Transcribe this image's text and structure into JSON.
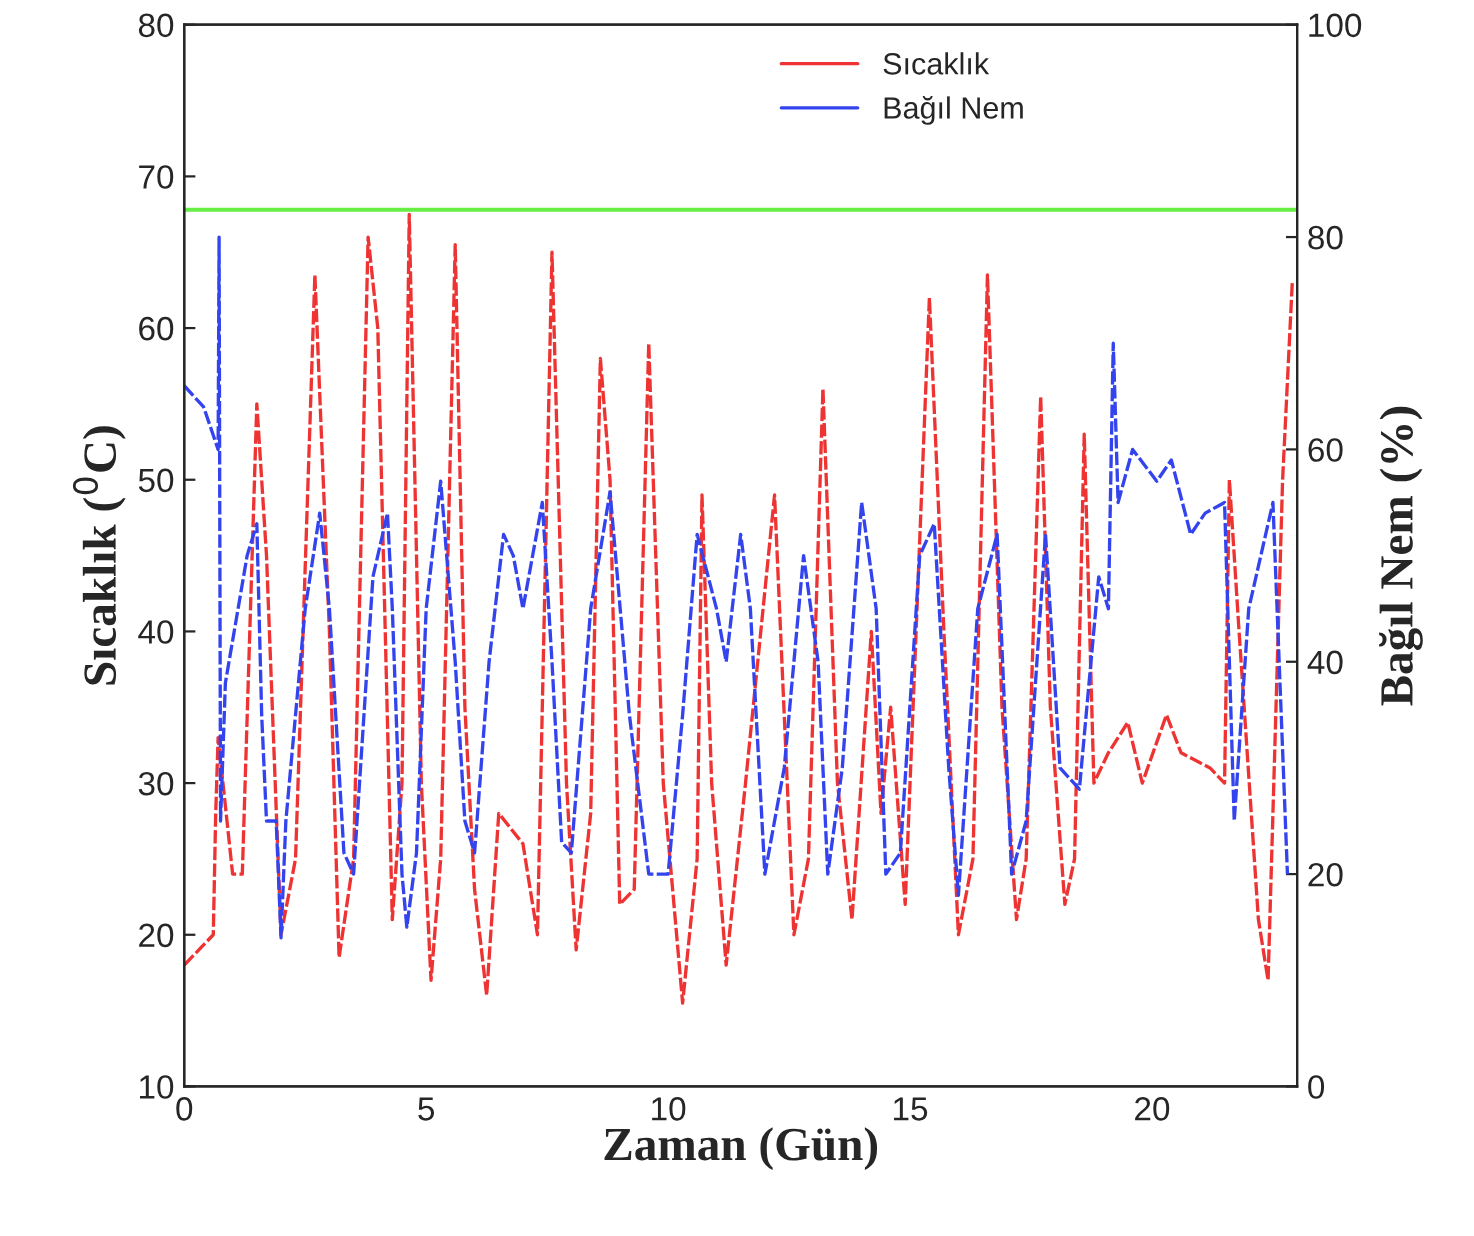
{
  "chart_data": {
    "type": "line",
    "xlabel": "Zaman (Gün)",
    "ylabel": "Sıcaklık ($^{0}$C)",
    "y2label": "Bağıl Nem (%)",
    "xlim": [
      0,
      23
    ],
    "xticks": [
      0,
      5,
      10,
      15,
      20
    ],
    "ylim": [
      10,
      80
    ],
    "yticks": [
      10,
      20,
      30,
      40,
      50,
      60,
      70,
      80
    ],
    "y2lim": [
      0,
      100
    ],
    "y2ticks": [
      0,
      20,
      40,
      60,
      80,
      100
    ],
    "grid": false,
    "legend": "top right",
    "marker": "none",
    "line_style": "dashed",
    "ref_lines": [
      {
        "axis": "y",
        "value": 67.8,
        "color": "#66ee44"
      }
    ],
    "series": [
      {
        "name": "Sıcaklık",
        "color": "#ee3333",
        "axis": "y",
        "x": [
          0,
          0.6,
          0.65,
          0.7,
          1.0,
          1.2,
          1.5,
          1.7,
          2.0,
          2.3,
          2.7,
          3.0,
          3.2,
          3.5,
          3.8,
          4.0,
          4.3,
          4.5,
          4.65,
          4.9,
          5.1,
          5.3,
          5.6,
          5.8,
          6.0,
          6.25,
          6.5,
          7.0,
          7.3,
          7.6,
          7.9,
          8.1,
          8.4,
          8.6,
          8.8,
          9.0,
          9.3,
          9.6,
          9.9,
          10.3,
          10.6,
          10.7,
          10.9,
          11.2,
          11.6,
          12.2,
          12.6,
          12.9,
          13.2,
          13.5,
          13.8,
          14.2,
          14.4,
          14.6,
          14.9,
          15.4,
          15.7,
          16.0,
          16.3,
          16.6,
          16.9,
          17.2,
          17.4,
          17.7,
          17.9,
          18.2,
          18.4,
          18.6,
          18.8,
          19.1,
          19.5,
          19.8,
          20.3,
          20.6,
          21.2,
          21.5,
          21.6,
          21.8,
          22.2,
          22.4,
          22.7,
          22.9
        ],
        "values": [
          18,
          20,
          28,
          33,
          24,
          24,
          55,
          45,
          20,
          25,
          63.5,
          40,
          18.5,
          25,
          66,
          60,
          21,
          30,
          67.5,
          30,
          17,
          25,
          65.5,
          35,
          23,
          16,
          28,
          26,
          20,
          65,
          30,
          19,
          28,
          58,
          50,
          22,
          23,
          59,
          30,
          15.5,
          25,
          49,
          30,
          18,
          30,
          49,
          20,
          25,
          56,
          30,
          21,
          40,
          28,
          35,
          22,
          62,
          40,
          20,
          25,
          63.5,
          35,
          21,
          25,
          55.5,
          35,
          22,
          25,
          53,
          30,
          32,
          34,
          30,
          34.5,
          32,
          31,
          30,
          50,
          40,
          21,
          17,
          50,
          63
        ]
      },
      {
        "name": "Bağıl Nem",
        "color": "#3344ee",
        "axis": "y2",
        "x": [
          0,
          0.4,
          0.7,
          0.72,
          0.75,
          0.85,
          1.0,
          1.3,
          1.5,
          1.6,
          1.7,
          1.9,
          2.0,
          2.1,
          2.5,
          2.8,
          3.0,
          3.3,
          3.5,
          3.9,
          4.2,
          4.3,
          4.5,
          4.6,
          4.8,
          5.0,
          5.3,
          5.6,
          5.8,
          6.0,
          6.3,
          6.6,
          6.8,
          7.0,
          7.4,
          7.6,
          7.8,
          8.0,
          8.4,
          8.8,
          9.2,
          9.6,
          10.0,
          10.3,
          10.6,
          11.0,
          11.2,
          11.5,
          11.7,
          12.0,
          12.4,
          12.8,
          13.1,
          13.3,
          13.6,
          14.0,
          14.3,
          14.5,
          14.8,
          15.2,
          15.5,
          15.8,
          16.0,
          16.4,
          16.8,
          17.1,
          17.4,
          17.8,
          18.1,
          18.5,
          18.9,
          19.1,
          19.2,
          19.3,
          19.6,
          20.1,
          20.4,
          20.8,
          21.1,
          21.5,
          21.7,
          22.0,
          22.5,
          22.8
        ],
        "values": [
          66,
          64,
          60,
          80,
          25,
          38,
          42,
          50,
          53,
          35,
          25,
          25,
          14,
          25,
          45,
          54,
          45,
          22,
          20,
          48,
          54,
          45,
          20,
          15,
          22,
          45,
          57,
          40,
          25,
          22,
          40,
          52,
          50,
          45,
          55,
          40,
          23,
          22,
          45,
          56,
          35,
          20,
          20,
          35,
          52,
          45,
          40,
          52,
          45,
          20,
          30,
          50,
          40,
          20,
          30,
          55,
          45,
          20,
          22,
          50,
          53,
          30,
          18,
          45,
          52,
          20,
          25,
          52,
          30,
          28,
          48,
          45,
          70,
          55,
          60,
          57,
          59,
          52,
          54,
          55,
          25,
          45,
          55,
          20
        ]
      }
    ]
  }
}
